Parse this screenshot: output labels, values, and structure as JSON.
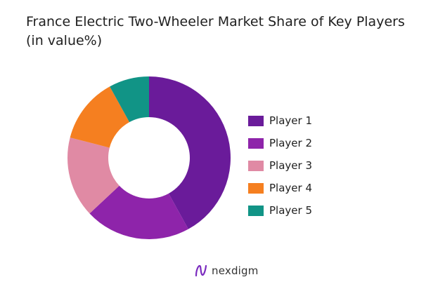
{
  "chart_data": {
    "type": "pie",
    "donut": true,
    "title": "France Electric Two-Wheeler Market Share of Key Players\n(in value%)",
    "categories": [
      "Player 1",
      "Player 2",
      "Player 3",
      "Player 4",
      "Player 5"
    ],
    "values": [
      42,
      21,
      16,
      13,
      8
    ],
    "colors": [
      "#6a1b9a",
      "#8e24aa",
      "#e08aa4",
      "#f57f20",
      "#119486"
    ],
    "legend_position": "right"
  },
  "branding": {
    "logo_text": "nexdigm",
    "logo_color": "#7b2cbf"
  }
}
